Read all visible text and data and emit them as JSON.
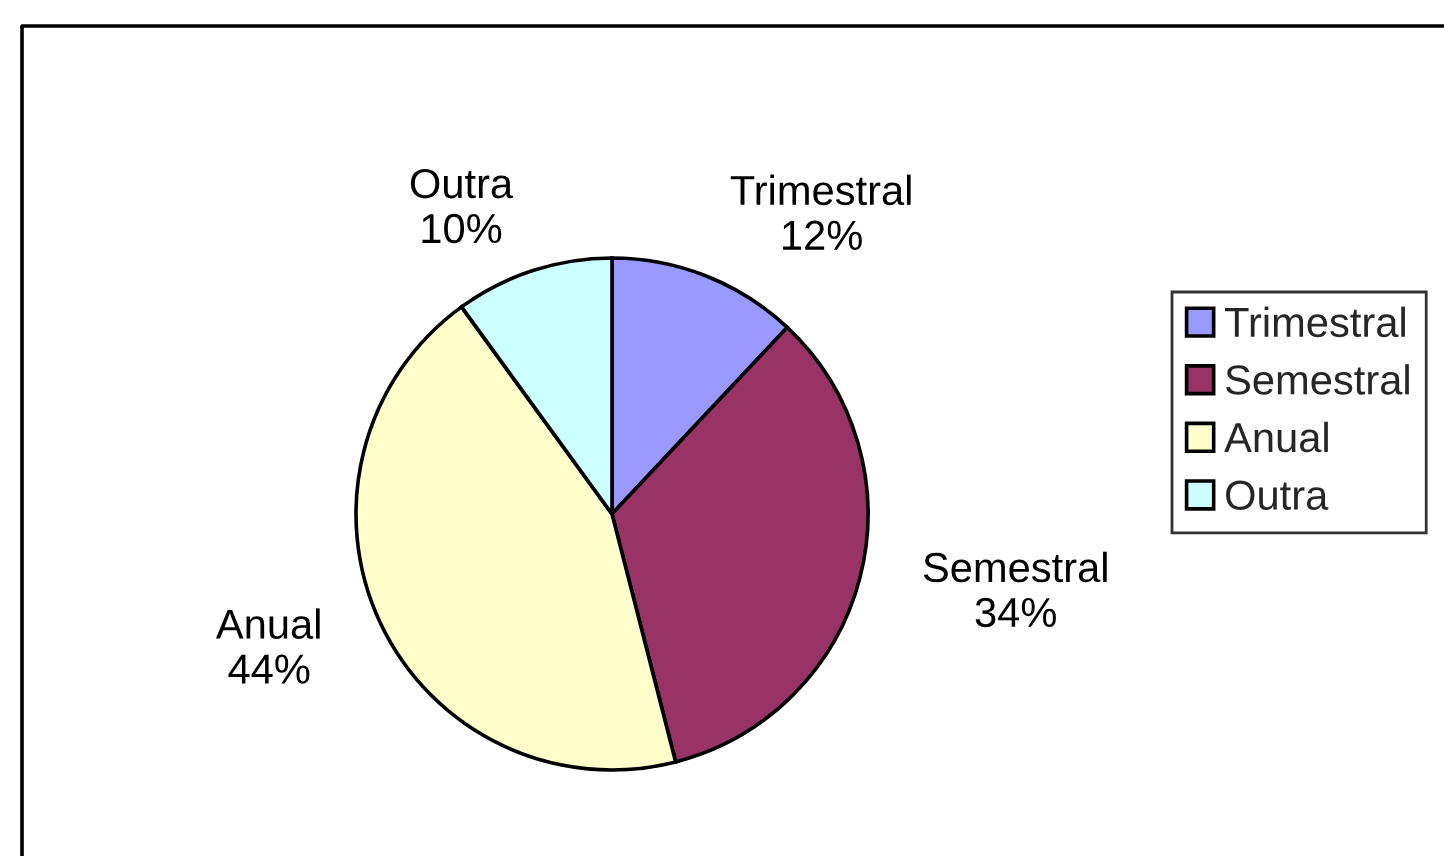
{
  "chart_data": {
    "type": "pie",
    "categories": [
      "Trimestral",
      "Semestral",
      "Anual",
      "Outra"
    ],
    "values": [
      12,
      34,
      44,
      10
    ],
    "value_labels": [
      "12%",
      "34%",
      "44%",
      "10%"
    ],
    "colors": [
      "#9999ff",
      "#993366",
      "#ffffcc",
      "#ccffff"
    ],
    "legend": "right"
  }
}
